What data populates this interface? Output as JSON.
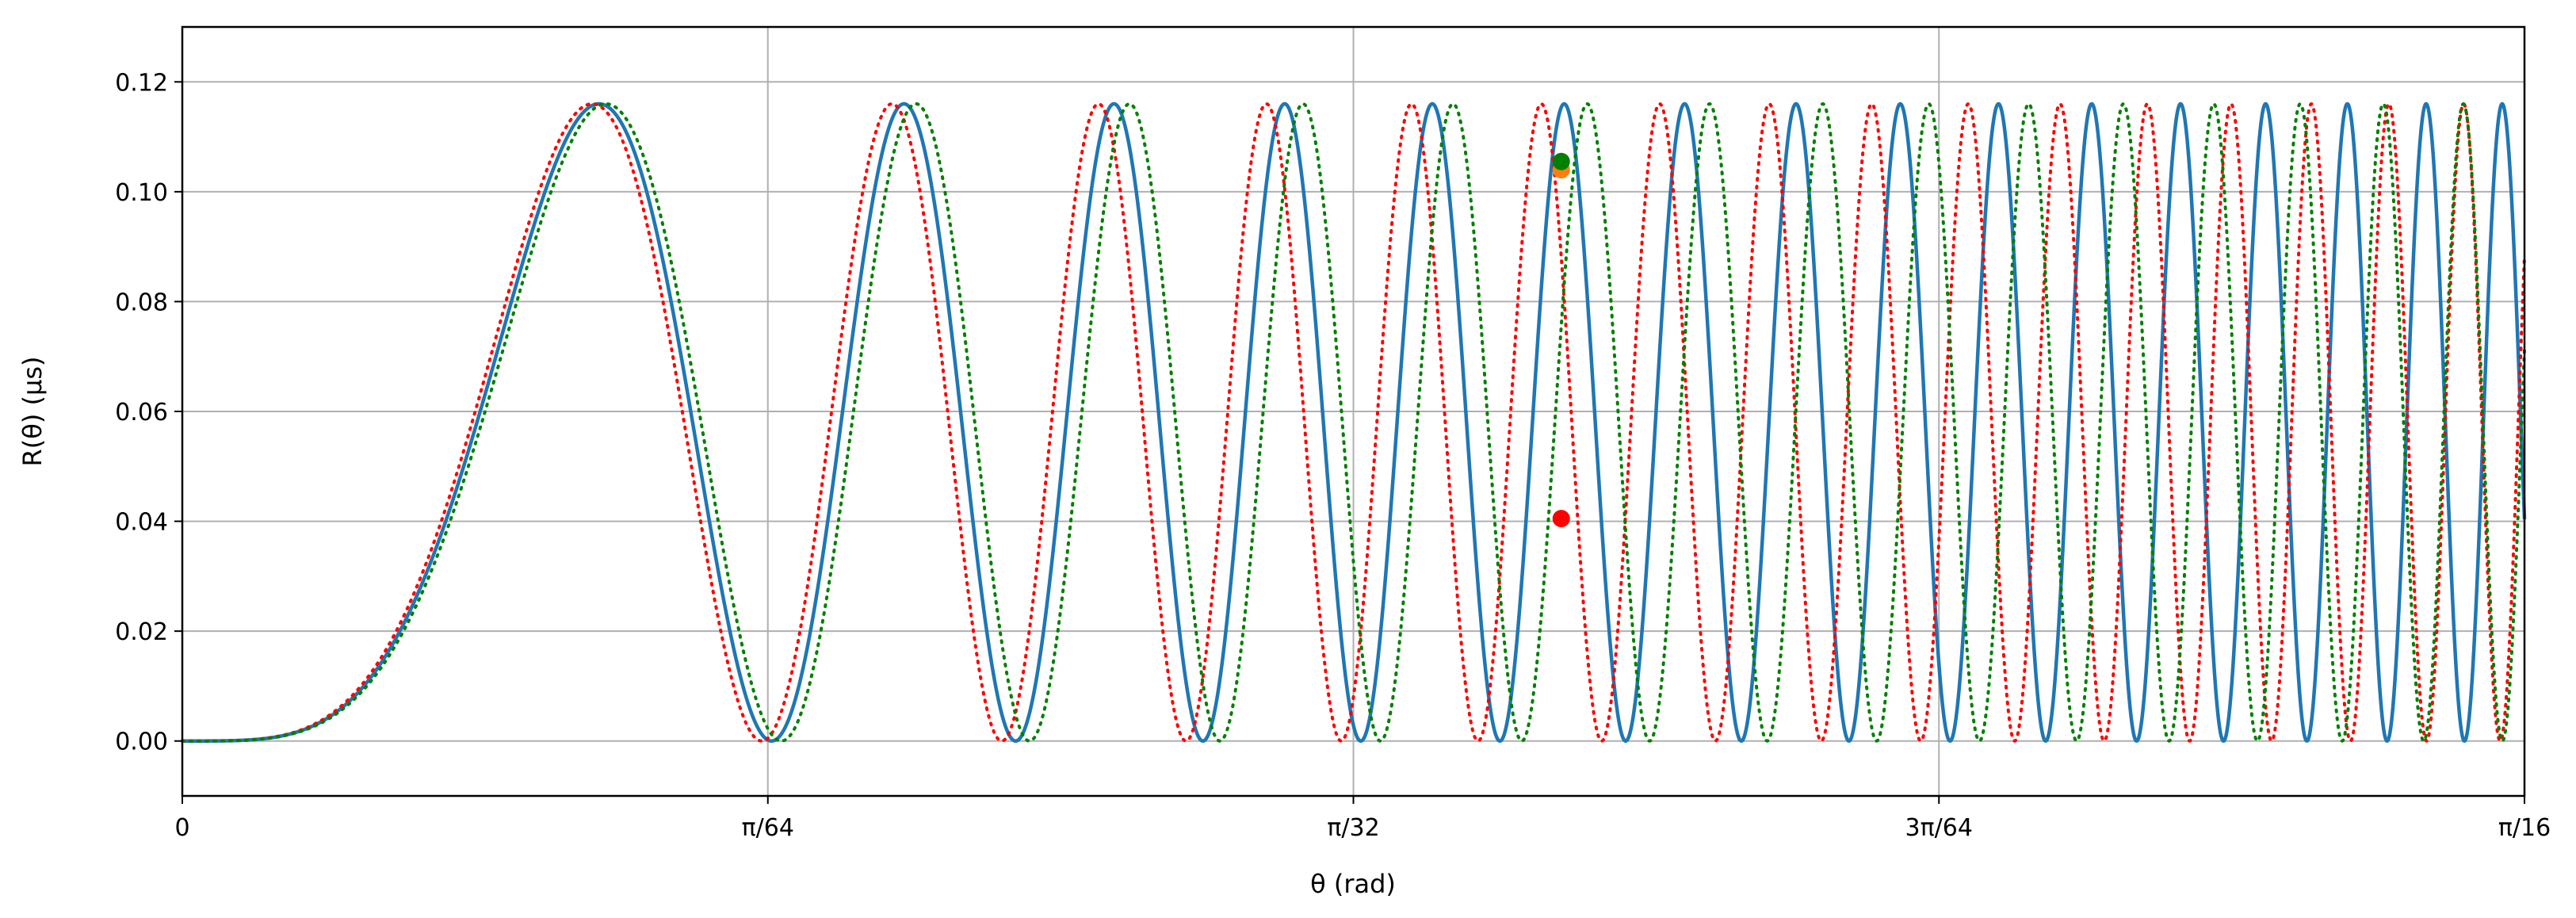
{
  "chart_data": {
    "type": "line",
    "xlabel": "θ (rad)",
    "ylabel": "R(θ) (μs)",
    "xlim": [
      0,
      0.19635
    ],
    "ylim": [
      -0.01,
      0.13
    ],
    "grid": true,
    "x_ticks": [
      {
        "value": 0,
        "label": "0"
      },
      {
        "value": 0.049087,
        "label": "π/64"
      },
      {
        "value": 0.098175,
        "label": "π/32"
      },
      {
        "value": 0.147262,
        "label": "3π/64"
      },
      {
        "value": 0.19635,
        "label": "π/16"
      }
    ],
    "y_ticks": [
      {
        "value": 0.0,
        "label": "0.00"
      },
      {
        "value": 0.02,
        "label": "0.02"
      },
      {
        "value": 0.04,
        "label": "0.04"
      },
      {
        "value": 0.06,
        "label": "0.06"
      },
      {
        "value": 0.08,
        "label": "0.08"
      },
      {
        "value": 0.1,
        "label": "0.10"
      },
      {
        "value": 0.12,
        "label": "0.12"
      }
    ],
    "amplitude": 0.116,
    "series": [
      {
        "style": "solid",
        "color": "#1f77b4",
        "frequency_scale": 1.0,
        "x_first_peak": 0.03493
      },
      {
        "style": "dotted",
        "color": "#ff0000",
        "frequency_scale": 1.04,
        "x_first_peak": 0.03435
      },
      {
        "style": "dotted",
        "color": "#008000",
        "frequency_scale": 0.97,
        "x_first_peak": 0.03551
      }
    ],
    "points": [
      {
        "x": 0.1156,
        "y": 0.0405,
        "color": "#ff0000"
      },
      {
        "x": 0.1156,
        "y": 0.104,
        "color": "#ff7f0e"
      },
      {
        "x": 0.1156,
        "y": 0.1055,
        "color": "#008000"
      }
    ]
  }
}
